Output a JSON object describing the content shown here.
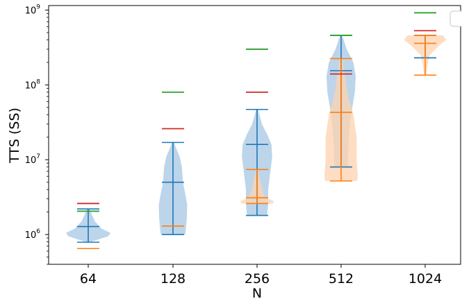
{
  "chart_data": {
    "type": "violin",
    "title": "",
    "xlabel": "N",
    "ylabel": "TTS (SS)",
    "yscale": "log",
    "ylim": [
      400000.0,
      1150000000.0
    ],
    "categories": [
      "64",
      "128",
      "256",
      "512",
      "1024"
    ],
    "y_tick_values": [
      1000000.0,
      10000000.0,
      100000000.0,
      1000000000.0
    ],
    "y_tick_labels": [
      {
        "base": "10",
        "exp": "6"
      },
      {
        "base": "10",
        "exp": "7"
      },
      {
        "base": "10",
        "exp": "8"
      },
      {
        "base": "10",
        "exp": "9"
      }
    ],
    "grid": false,
    "legend": {
      "placement": "top-right",
      "entries": [
        ""
      ]
    },
    "colors": {
      "blue": "#1f77b4",
      "orange": "#ff7f0e",
      "green": "#2ca02c",
      "red": "#d62728",
      "blue_fill": "#b8d3ea",
      "orange_fill": "#ffd2ad"
    },
    "series": [
      {
        "color": "blue",
        "violins": [
          {
            "category": "64",
            "min": 790000.0,
            "max": 2200000.0,
            "median": 1280000.0,
            "shape": [
              [
                790000.0,
                0.05
              ],
              [
                850000.0,
                0.4
              ],
              [
                950000.0,
                0.9
              ],
              [
                1050000.0,
                1.0
              ],
              [
                1200000.0,
                0.6
              ],
              [
                1500000.0,
                0.3
              ],
              [
                1800000.0,
                0.18
              ],
              [
                2200000.0,
                0.05
              ]
            ]
          },
          {
            "category": "128",
            "min": 1000000.0,
            "max": 17000000.0,
            "median": 5000000.0,
            "shape": [
              [
                1000000.0,
                0.55
              ],
              [
                1200000.0,
                0.58
              ],
              [
                1600000.0,
                0.62
              ],
              [
                2500000.0,
                0.64
              ],
              [
                3500000.0,
                0.55
              ],
              [
                5000000.0,
                0.45
              ],
              [
                8000000.0,
                0.4
              ],
              [
                11000000.0,
                0.3
              ],
              [
                14000000.0,
                0.15
              ],
              [
                17000000.0,
                0.05
              ]
            ]
          },
          {
            "category": "256",
            "min": 1800000.0,
            "max": 47000000.0,
            "median": 16000000.0,
            "shape": [
              [
                1800000.0,
                0.45
              ],
              [
                2500000.0,
                0.5
              ],
              [
                4000000.0,
                0.5
              ],
              [
                7000000.0,
                0.6
              ],
              [
                11000000.0,
                0.68
              ],
              [
                16000000.0,
                0.65
              ],
              [
                22000000.0,
                0.45
              ],
              [
                30000000.0,
                0.22
              ],
              [
                47000000.0,
                0.04
              ]
            ]
          },
          {
            "category": "512",
            "min": 8000000.0,
            "max": 460000000.0,
            "median": 155000000.0,
            "shape": [
              [
                8000000.0,
                0.3
              ],
              [
                12000000.0,
                0.32
              ],
              [
                20000000.0,
                0.35
              ],
              [
                40000000.0,
                0.45
              ],
              [
                80000000.0,
                0.62
              ],
              [
                130000000.0,
                0.66
              ],
              [
                200000000.0,
                0.55
              ],
              [
                300000000.0,
                0.25
              ],
              [
                400000000.0,
                0.12
              ],
              [
                460000000.0,
                0.03
              ]
            ]
          },
          {
            "category": "1024",
            "min": 230000000.0,
            "max": 460000000.0,
            "median": 230000000.0,
            "shape": []
          }
        ]
      },
      {
        "color": "orange",
        "violins": [
          {
            "category": "64",
            "min": 650000.0,
            "max": 650000.0,
            "median": 650000.0,
            "shape": []
          },
          {
            "category": "128",
            "min": 1300000.0,
            "max": 1300000.0,
            "median": 1300000.0,
            "shape": []
          },
          {
            "category": "256",
            "min": 2600000.0,
            "max": 7400000.0,
            "median": 3100000.0,
            "shape": [
              [
                2600000.0,
                0.72
              ],
              [
                2800000.0,
                0.75
              ],
              [
                3100000.0,
                0.4
              ],
              [
                3500000.0,
                0.3
              ],
              [
                4500000.0,
                0.2
              ],
              [
                6000000.0,
                0.12
              ],
              [
                7400000.0,
                0.04
              ]
            ]
          },
          {
            "category": "512",
            "min": 5200000.0,
            "max": 225000000.0,
            "median": 43000000.0,
            "shape": [
              [
                5200000.0,
                0.72
              ],
              [
                6000000.0,
                0.75
              ],
              [
                10000000.0,
                0.7
              ],
              [
                20000000.0,
                0.7
              ],
              [
                40000000.0,
                0.55
              ],
              [
                70000000.0,
                0.32
              ],
              [
                120000000.0,
                0.2
              ],
              [
                225000000.0,
                0.05
              ]
            ]
          },
          {
            "category": "1024",
            "min": 135000000.0,
            "max": 460000000.0,
            "median": 360000000.0,
            "shape": [
              [
                135000000.0,
                0.05
              ],
              [
                180000000.0,
                0.1
              ],
              [
                250000000.0,
                0.2
              ],
              [
                330000000.0,
                0.6
              ],
              [
                400000000.0,
                0.95
              ],
              [
                460000000.0,
                0.8
              ]
            ]
          }
        ]
      }
    ],
    "markers": [
      {
        "color": "green",
        "values": [
          2050000.0,
          80000000.0,
          300000000.0,
          460000000.0,
          920000000.0
        ]
      },
      {
        "color": "red",
        "values": [
          2600000.0,
          26000000.0,
          80000000.0,
          140000000.0,
          530000000.0
        ]
      }
    ]
  }
}
